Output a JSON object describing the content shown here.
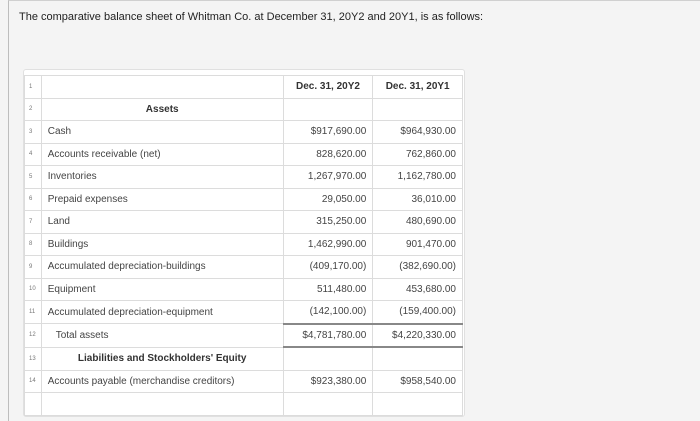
{
  "intro": "The comparative balance sheet of Whitman Co. at December 31, 20Y2 and 20Y1, is as follows:",
  "headers": [
    "Dec. 31, 20Y2",
    "Dec. 31, 20Y1"
  ],
  "rows": [
    {
      "n": "2",
      "label": "Assets",
      "a": "",
      "b": ""
    },
    {
      "n": "3",
      "label": "Cash",
      "a": "$917,690.00",
      "b": "$964,930.00"
    },
    {
      "n": "4",
      "label": "Accounts receivable (net)",
      "a": "828,620.00",
      "b": "762,860.00"
    },
    {
      "n": "5",
      "label": "Inventories",
      "a": "1,267,970.00",
      "b": "1,162,780.00"
    },
    {
      "n": "6",
      "label": "Prepaid expenses",
      "a": "29,050.00",
      "b": "36,010.00"
    },
    {
      "n": "7",
      "label": "Land",
      "a": "315,250.00",
      "b": "480,690.00"
    },
    {
      "n": "8",
      "label": "Buildings",
      "a": "1,462,990.00",
      "b": "901,470.00"
    },
    {
      "n": "9",
      "label": "Accumulated depreciation-buildings",
      "a": "(409,170.00)",
      "b": "(382,690.00)"
    },
    {
      "n": "10",
      "label": "Equipment",
      "a": "511,480.00",
      "b": "453,680.00"
    },
    {
      "n": "11",
      "label": "Accumulated depreciation-equipment",
      "a": "(142,100.00)",
      "b": "(159,400.00)"
    },
    {
      "n": "12",
      "label": "Total assets",
      "a": "$4,781,780.00",
      "b": "$4,220,330.00"
    },
    {
      "n": "13",
      "label": "Liabilities and Stockholders' Equity",
      "a": "",
      "b": ""
    },
    {
      "n": "14",
      "label": "Accounts payable (merchandise creditors)",
      "a": "$923,380.00",
      "b": "$958,540.00"
    }
  ]
}
